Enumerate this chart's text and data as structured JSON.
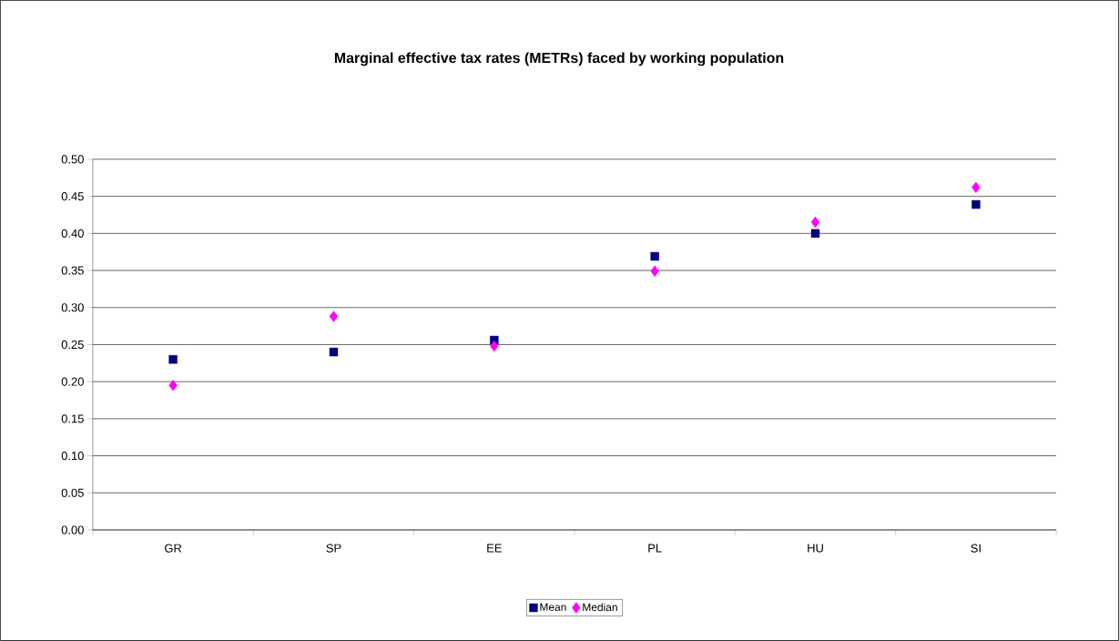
{
  "chart_data": {
    "type": "scatter",
    "title": "Marginal effective tax rates (METRs) faced by working population",
    "categories": [
      "GR",
      "SP",
      "EE",
      "PL",
      "HU",
      "SI"
    ],
    "series": [
      {
        "name": "Mean",
        "color": "#000080",
        "marker": "square",
        "values": [
          0.23,
          0.24,
          0.256,
          0.369,
          0.4,
          0.439
        ]
      },
      {
        "name": "Median",
        "color": "#ff00ff",
        "marker": "diamond",
        "values": [
          0.195,
          0.288,
          0.248,
          0.349,
          0.415,
          0.462
        ]
      }
    ],
    "ylim": [
      0,
      0.5
    ],
    "yticks": [
      {
        "value": 0,
        "label": "0.00"
      },
      {
        "value": 0.05,
        "label": "0.05"
      },
      {
        "value": 0.1,
        "label": "0.10"
      },
      {
        "value": 0.15,
        "label": "0.15"
      },
      {
        "value": 0.2,
        "label": "0.20"
      },
      {
        "value": 0.25,
        "label": "0.25"
      },
      {
        "value": 0.3,
        "label": "0.30"
      },
      {
        "value": 0.35,
        "label": "0.35"
      },
      {
        "value": 0.4,
        "label": "0.40"
      },
      {
        "value": 0.45,
        "label": "0.45"
      },
      {
        "value": 0.5,
        "label": "0.50"
      }
    ],
    "grid": "y",
    "legend": "bottom"
  }
}
